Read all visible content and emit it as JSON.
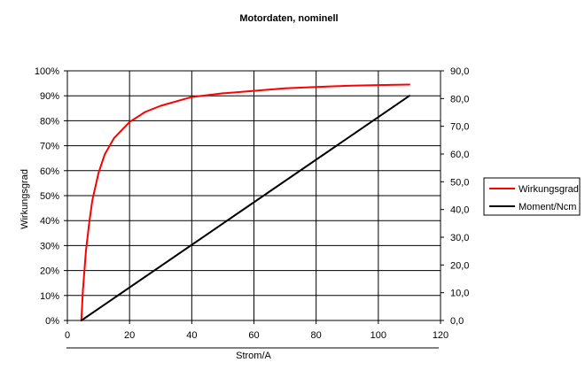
{
  "chart_data": {
    "type": "line",
    "title": "Motordaten, nominell",
    "xlabel": "Strom/A",
    "ylabel_left": "Wirkungsgrad",
    "ylabel_right": "",
    "xlim": [
      0,
      120
    ],
    "xticks": [
      "0",
      "20",
      "40",
      "60",
      "80",
      "100",
      "120"
    ],
    "ylim_left": [
      0,
      1
    ],
    "yticks_left": [
      "0%",
      "10%",
      "20%",
      "30%",
      "40%",
      "50%",
      "60%",
      "70%",
      "80%",
      "90%",
      "100%"
    ],
    "ylim_right": [
      0,
      90
    ],
    "yticks_right": [
      "0,0",
      "10,0",
      "20,0",
      "30,0",
      "40,0",
      "50,0",
      "60,0",
      "70,0",
      "80,0",
      "90,0"
    ],
    "grid": true,
    "legend_position": "right",
    "series": [
      {
        "name": "Wirkungsgrad",
        "axis": "left",
        "color": "#ff0000",
        "x": [
          4.5,
          5,
          6,
          7,
          8,
          10,
          12,
          15,
          20,
          25,
          30,
          40,
          50,
          60,
          70,
          80,
          90,
          100,
          110
        ],
        "y": [
          0.0,
          0.12,
          0.28,
          0.39,
          0.48,
          0.59,
          0.665,
          0.73,
          0.795,
          0.835,
          0.86,
          0.895,
          0.91,
          0.92,
          0.93,
          0.935,
          0.94,
          0.943,
          0.945
        ]
      },
      {
        "name": "Moment/Ncm",
        "axis": "right",
        "color": "#000000",
        "x": [
          4.5,
          110
        ],
        "y": [
          0.0,
          81.0
        ]
      }
    ]
  }
}
